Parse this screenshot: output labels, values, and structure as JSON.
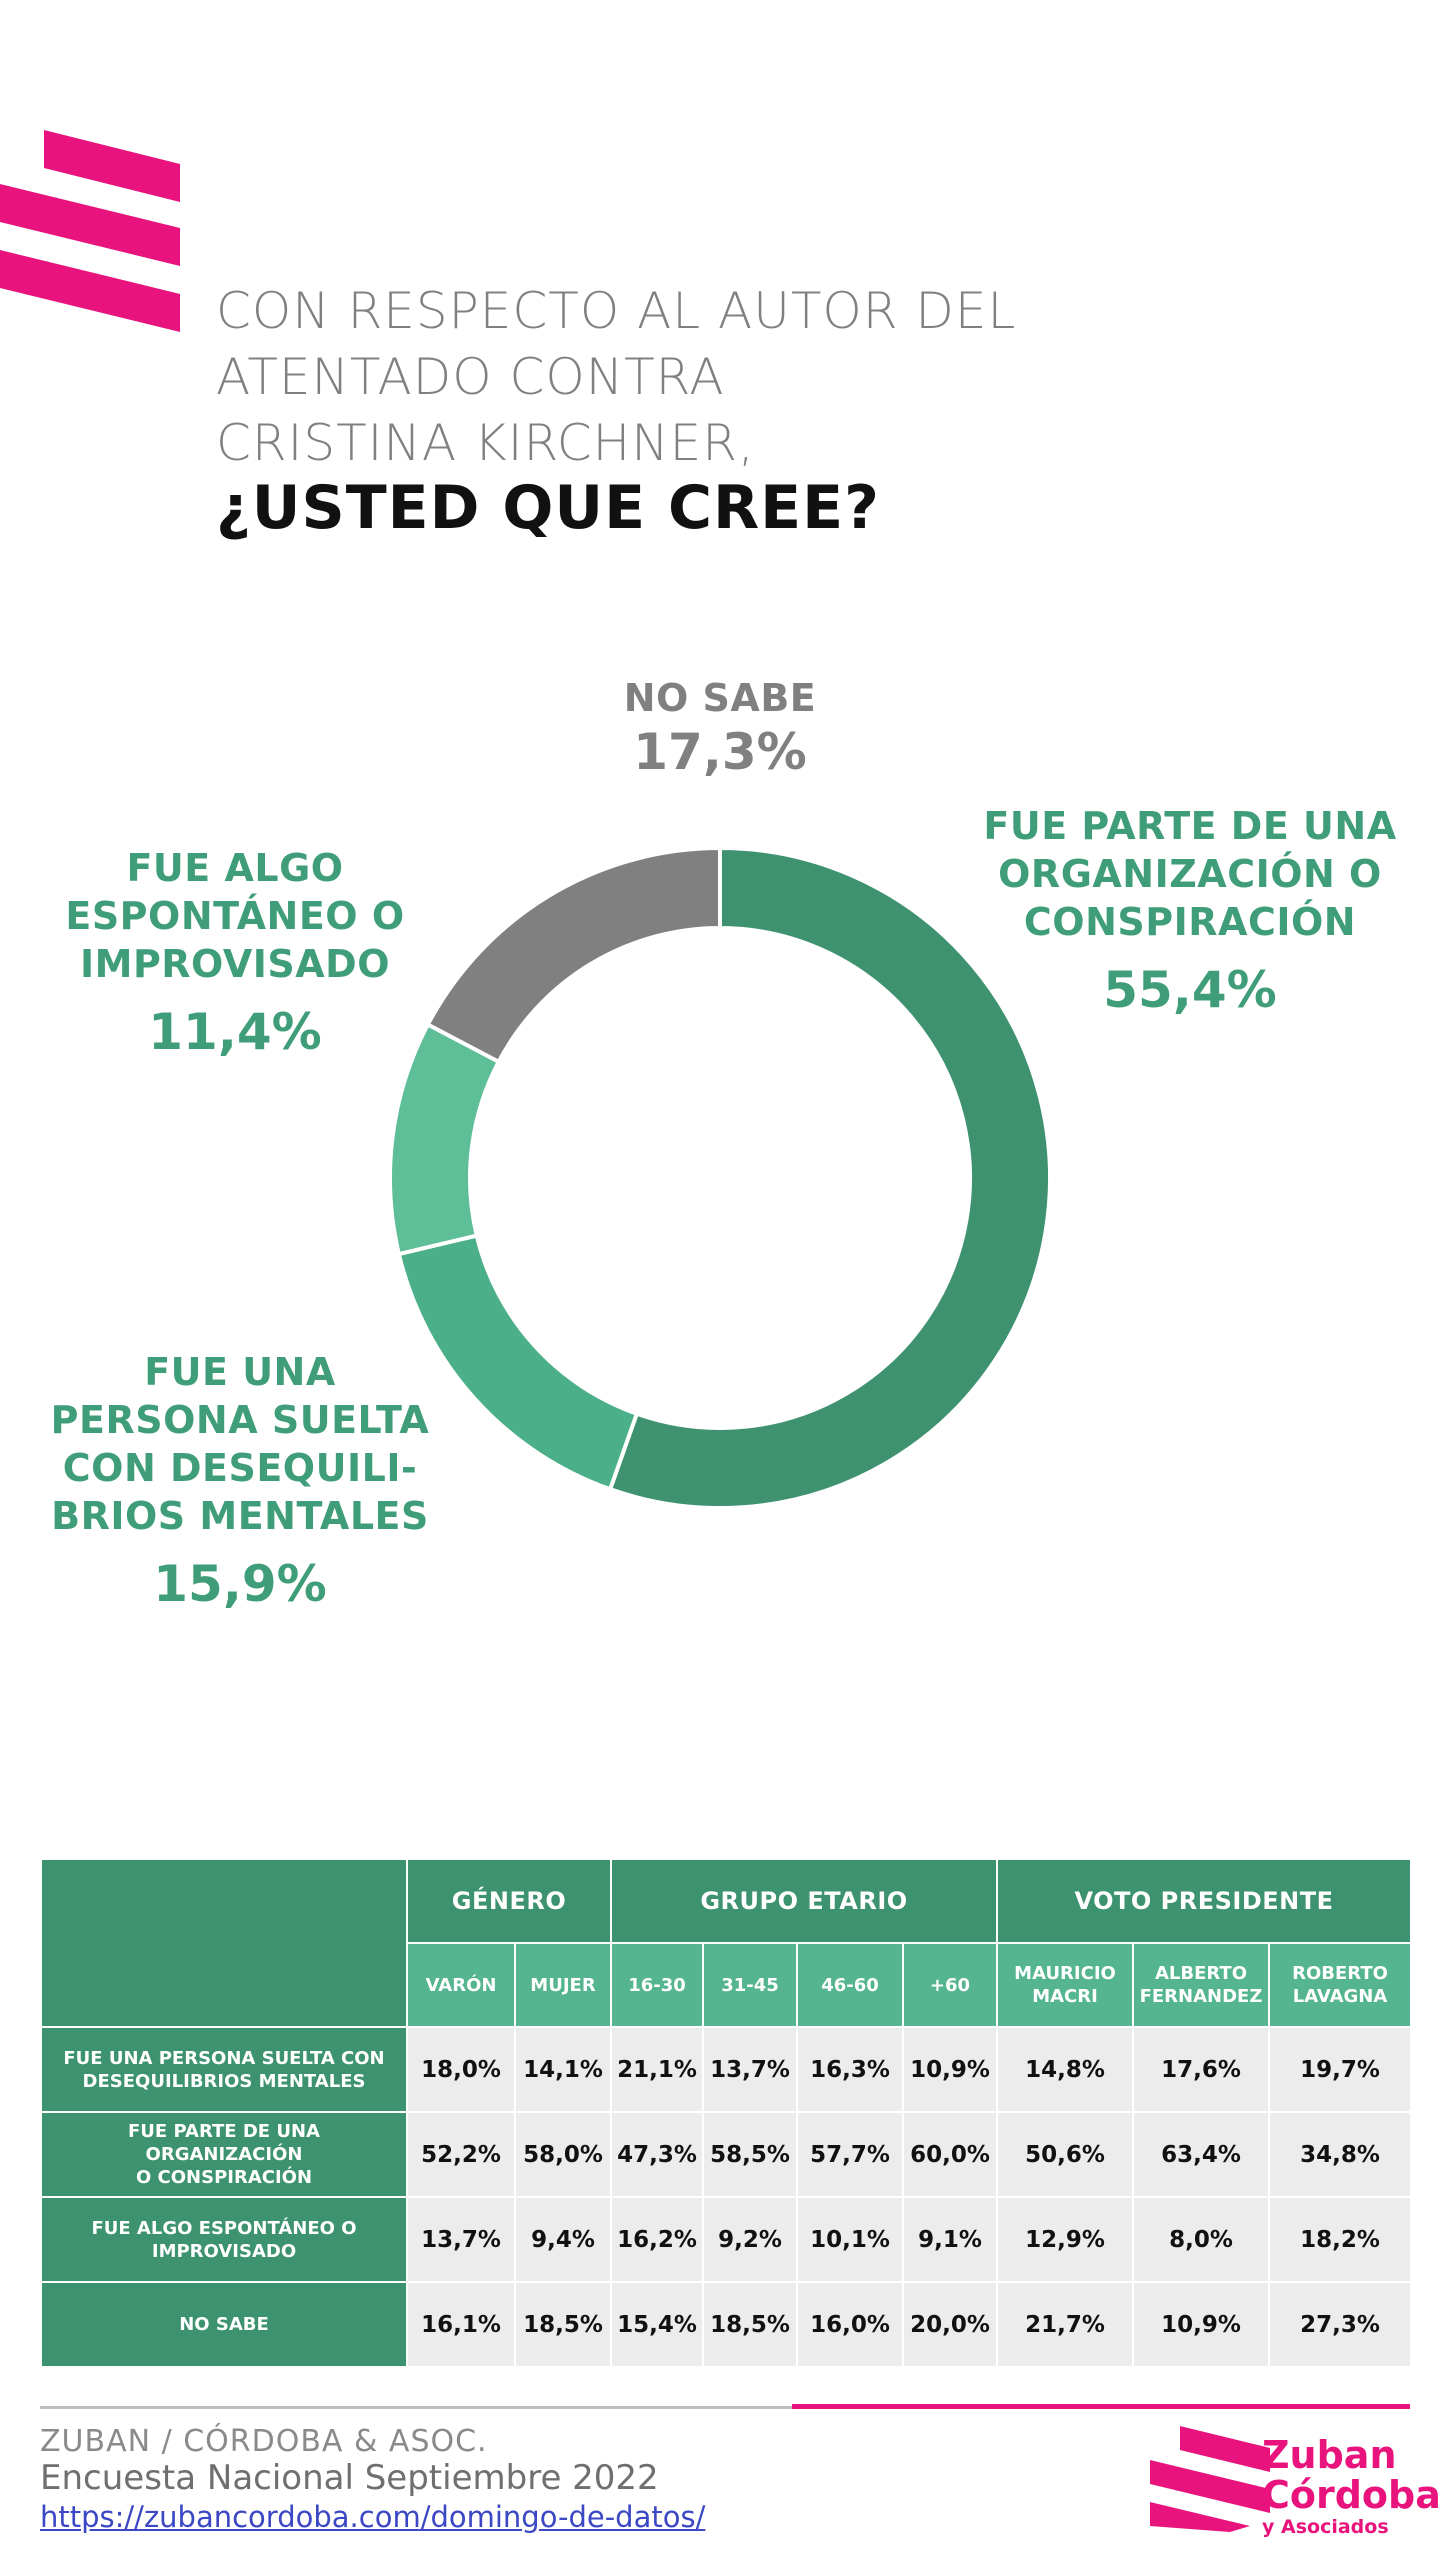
{
  "colors": {
    "accent_pink": "#e8137d",
    "green_dark": "#3f9270",
    "green_mid": "#4bb089",
    "green_light": "#5dbe98",
    "grey": "#808080"
  },
  "header": {
    "question_lines": [
      "CON RESPECTO AL AUTOR DEL",
      "ATENTADO CONTRA",
      "CRISTINA KIRCHNER,"
    ],
    "question_bold": "¿USTED QUE CREE?"
  },
  "chart_data": {
    "type": "pie",
    "donut": true,
    "legend": "none",
    "labels": [
      "FUE PARTE DE UNA ORGANIZACIÓN O CONSPIRACIÓN",
      "FUE UNA PERSONA SUELTA CON DESEQUILIBRIOS MENTALES",
      "FUE ALGO ESPONTÁNEO O IMPROVISADO",
      "NO SABE"
    ],
    "values": [
      55.4,
      15.9,
      11.4,
      17.3
    ],
    "colors": [
      "#3f9270",
      "#4bb089",
      "#5dbe98",
      "#808080"
    ],
    "slice_labels": [
      {
        "lines": [
          "FUE PARTE DE UNA",
          "ORGANIZACIÓN O",
          "CONSPIRACIÓN"
        ],
        "pct": "55,4%"
      },
      {
        "lines": [
          "FUE UNA",
          "PERSONA SUELTA",
          "CON DESEQUILI-",
          "BRIOS MENTALES"
        ],
        "pct": "15,9%"
      },
      {
        "lines": [
          "FUE ALGO",
          "ESPONTÁNEO O",
          "IMPROVISADO"
        ],
        "pct": "11,4%"
      },
      {
        "lines": [
          "NO SABE"
        ],
        "pct": "17,3%"
      }
    ]
  },
  "table": {
    "groups": [
      {
        "label": "GÉNERO",
        "span": 2
      },
      {
        "label": "GRUPO ETARIO",
        "span": 4
      },
      {
        "label": "VOTO PRESIDENTE",
        "span": 3
      }
    ],
    "columns": [
      [
        "VARÓN"
      ],
      [
        "MUJER"
      ],
      [
        "16-30"
      ],
      [
        "31-45"
      ],
      [
        "46-60"
      ],
      [
        "+60"
      ],
      [
        "MAURICIO",
        "MACRI"
      ],
      [
        "ALBERTO",
        "FERNANDEZ"
      ],
      [
        "ROBERTO",
        "LAVAGNA"
      ]
    ],
    "rows": [
      {
        "label": [
          "FUE UNA PERSONA SUELTA CON",
          "DESEQUILIBRIOS MENTALES"
        ],
        "values": [
          "18,0%",
          "14,1%",
          "21,1%",
          "13,7%",
          "16,3%",
          "10,9%",
          "14,8%",
          "17,6%",
          "19,7%"
        ]
      },
      {
        "label": [
          "FUE PARTE DE UNA ORGANIZACIÓN",
          "O CONSPIRACIÓN"
        ],
        "values": [
          "52,2%",
          "58,0%",
          "47,3%",
          "58,5%",
          "57,7%",
          "60,0%",
          "50,6%",
          "63,4%",
          "34,8%"
        ]
      },
      {
        "label": [
          "FUE ALGO ESPONTÁNEO O",
          "IMPROVISADO"
        ],
        "values": [
          "13,7%",
          "9,4%",
          "16,2%",
          "9,2%",
          "10,1%",
          "9,1%",
          "12,9%",
          "8,0%",
          "18,2%"
        ]
      },
      {
        "label": [
          "NO SABE"
        ],
        "values": [
          "16,1%",
          "18,5%",
          "15,4%",
          "18,5%",
          "16,0%",
          "20,0%",
          "21,7%",
          "10,9%",
          "27,3%"
        ]
      }
    ]
  },
  "footer": {
    "org": "ZUBAN / CÓRDOBA & ASOC.",
    "survey": "Encuesta Nacional Septiembre 2022",
    "link": "https://zubancordoba.com/domingo-de-datos/",
    "brand_line1": "Zuban",
    "brand_line2": "Córdoba",
    "brand_line3": "y Asociados",
    "logo_icon": "zuban-cordoba-stripes-logo"
  }
}
